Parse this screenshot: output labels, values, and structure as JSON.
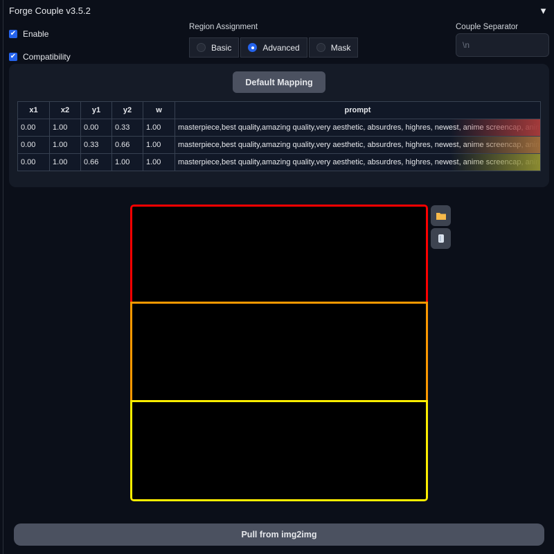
{
  "header": {
    "title": "Forge Couple v3.5.2",
    "collapse_icon": "triangle-down-icon"
  },
  "checkboxes": [
    {
      "label": "Enable",
      "checked": true
    },
    {
      "label": "Compatibility",
      "checked": true
    }
  ],
  "region_assignment": {
    "label": "Region Assignment",
    "options": [
      "Basic",
      "Advanced",
      "Mask"
    ],
    "selected": "Advanced"
  },
  "couple_separator": {
    "label": "Couple Separator",
    "placeholder": "\\n"
  },
  "mapping": {
    "default_button": "Default Mapping",
    "columns": [
      "x1",
      "x2",
      "y1",
      "y2",
      "w",
      "prompt"
    ],
    "rows": [
      [
        "0.00",
        "1.00",
        "0.00",
        "0.33",
        "1.00",
        "masterpiece,best quality,amazing quality,very aesthetic, absurdres, highres, newest, anime screencap, anim"
      ],
      [
        "0.00",
        "1.00",
        "0.33",
        "0.66",
        "1.00",
        "masterpiece,best quality,amazing quality,very aesthetic, absurdres, highres, newest, anime screencap, anim"
      ],
      [
        "0.00",
        "1.00",
        "0.66",
        "1.00",
        "1.00",
        "masterpiece,best quality,amazing quality,very aesthetic, absurdres, highres, newest, anime screencap, anim"
      ]
    ],
    "row_colors": [
      "#a33a3a",
      "#9a6a3a",
      "#8a8a30"
    ]
  },
  "canvas": {
    "region_colors": [
      "#ff0000",
      "#ff9900",
      "#ffee00"
    ],
    "tools": [
      "folder-icon",
      "trash-icon"
    ]
  },
  "pull_button": "Pull from img2img"
}
